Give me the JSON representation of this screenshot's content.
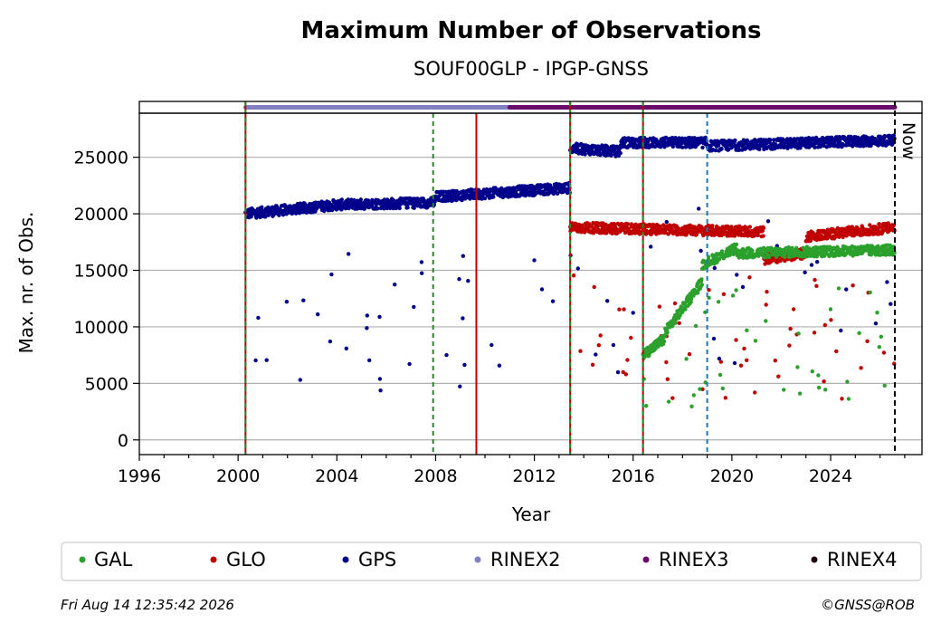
{
  "chart_data": {
    "type": "scatter",
    "title": "Maximum Number of Observations",
    "subtitle": "SOUF00GLP - IPGP-GNSS",
    "xlabel": "Year",
    "ylabel": "Max. nr. of Obs.",
    "xlim": [
      1996,
      2027.7
    ],
    "ylim": [
      -1300,
      28900
    ],
    "xticks": [
      1996,
      2000,
      2004,
      2008,
      2012,
      2016,
      2020,
      2024
    ],
    "yticks": [
      0,
      5000,
      10000,
      15000,
      20000,
      25000
    ],
    "grid": "horizontal",
    "now_label": "Now",
    "now_x": 2026.6,
    "events": [
      {
        "x": 2000.3,
        "kind": "receiver+antenna"
      },
      {
        "x": 2007.9,
        "kind": "receiver"
      },
      {
        "x": 2009.65,
        "kind": "antenna"
      },
      {
        "x": 2013.45,
        "kind": "receiver+antenna"
      },
      {
        "x": 2016.4,
        "kind": "receiver+antenna"
      },
      {
        "x": 2019.0,
        "kind": "other"
      }
    ],
    "rinex_bar": [
      {
        "name": "RINEX2",
        "from": 2000.3,
        "to": 2011.0
      },
      {
        "name": "RINEX3",
        "from": 2011.0,
        "to": 2026.6
      }
    ],
    "series": [
      {
        "name": "GAL",
        "color": "#2ca02c",
        "segments": [
          {
            "from": 2016.4,
            "to": 2017.3,
            "y0": 7500,
            "y1": 9000
          },
          {
            "from": 2017.3,
            "to": 2018.8,
            "y0": 9500,
            "y1": 14000
          },
          {
            "from": 2018.8,
            "to": 2020.2,
            "y0": 15500,
            "y1": 17000
          },
          {
            "from": 2020.2,
            "to": 2026.6,
            "y0": 16500,
            "y1": 16800
          }
        ]
      },
      {
        "name": "GLO",
        "color": "#c00000",
        "segments": [
          {
            "from": 2013.45,
            "to": 2021.3,
            "y0": 18800,
            "y1": 18400
          },
          {
            "from": 2021.3,
            "to": 2023.0,
            "y0": 16000,
            "y1": 16500
          },
          {
            "from": 2023.0,
            "to": 2026.6,
            "y0": 18000,
            "y1": 18800
          }
        ]
      },
      {
        "name": "GPS",
        "color": "#00008b",
        "segments": [
          {
            "from": 2000.3,
            "to": 2004.0,
            "y0": 20000,
            "y1": 20800
          },
          {
            "from": 2004.0,
            "to": 2008.0,
            "y0": 20800,
            "y1": 21000
          },
          {
            "from": 2008.0,
            "to": 2013.45,
            "y0": 21500,
            "y1": 22300
          },
          {
            "from": 2013.45,
            "to": 2015.5,
            "y0": 25800,
            "y1": 25500
          },
          {
            "from": 2015.5,
            "to": 2019.0,
            "y0": 26300,
            "y1": 26300
          },
          {
            "from": 2019.0,
            "to": 2026.6,
            "y0": 26000,
            "y1": 26500
          }
        ]
      }
    ],
    "legend": [
      "GAL",
      "GLO",
      "GPS",
      "RINEX2",
      "RINEX3",
      "RINEX4"
    ],
    "legend_position": "bottom"
  },
  "colors": {
    "GAL": "#2ca02c",
    "GLO": "#c00000",
    "GPS": "#00008b",
    "RINEX2": "#8080c0",
    "RINEX3": "#6a0a6a",
    "RINEX4": "#200010"
  },
  "footer": {
    "date": "Fri Aug 14 12:35:42 2026",
    "copyright": "©GNSS@ROB"
  }
}
